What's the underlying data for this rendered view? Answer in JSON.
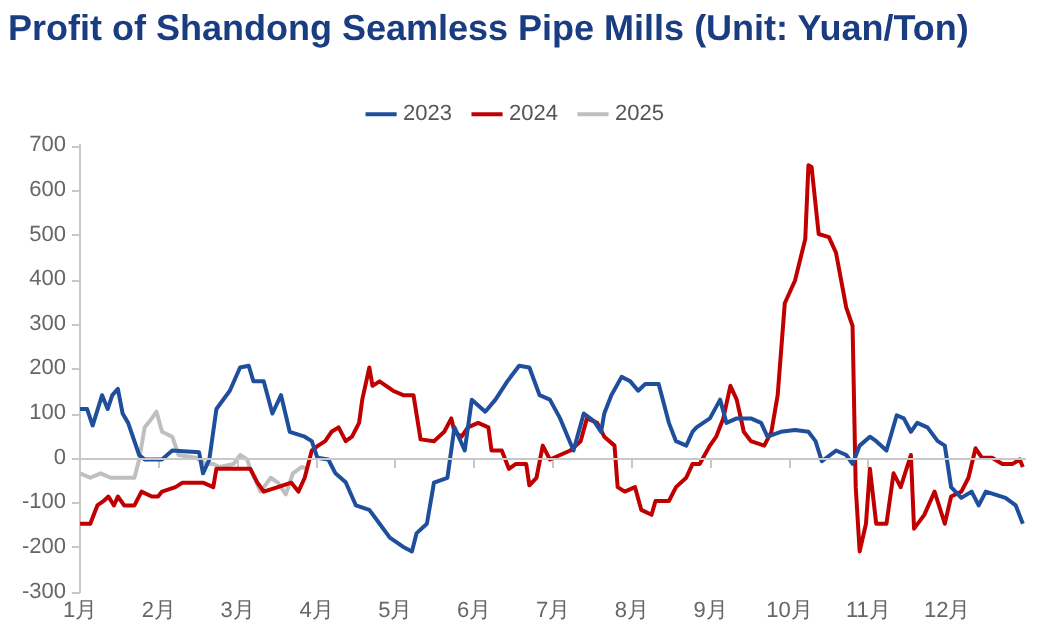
{
  "chart_data": {
    "type": "line",
    "title": "Profit of Shandong Seamless Pipe Mills (Unit: Yuan/Ton)",
    "legend": "top",
    "grid": false,
    "marker": "none",
    "line_style": "solid",
    "xlim": [
      1,
      13
    ],
    "xticks": [
      {
        "value": 1,
        "label": "1月"
      },
      {
        "value": 2,
        "label": "2月"
      },
      {
        "value": 3,
        "label": "3月"
      },
      {
        "value": 4,
        "label": "4月"
      },
      {
        "value": 5,
        "label": "5月"
      },
      {
        "value": 6,
        "label": "6月"
      },
      {
        "value": 7,
        "label": "7月"
      },
      {
        "value": 8,
        "label": "8月"
      },
      {
        "value": 9,
        "label": "9月"
      },
      {
        "value": 10,
        "label": "10月"
      },
      {
        "value": 11,
        "label": "11月"
      },
      {
        "value": 12,
        "label": "12月"
      }
    ],
    "ref_lines": [
      {
        "axis": "y",
        "value": 0,
        "color": "#c8c8c8"
      }
    ],
    "ylim": [
      -300,
      700
    ],
    "yticks": [
      -300,
      -200,
      -100,
      0,
      100,
      200,
      300,
      400,
      500,
      600,
      700
    ],
    "series": [
      {
        "name": "2023",
        "color": "#1f4e9c",
        "x": [
          1.0,
          1.09,
          1.16,
          1.28,
          1.35,
          1.41,
          1.48,
          1.54,
          1.61,
          1.75,
          1.82,
          2.04,
          2.17,
          2.51,
          2.56,
          2.64,
          2.73,
          2.9,
          3.03,
          3.14,
          3.2,
          3.33,
          3.44,
          3.55,
          3.66,
          3.85,
          3.94,
          4.01,
          4.15,
          4.24,
          4.37,
          4.5,
          4.67,
          4.8,
          4.93,
          5.1,
          5.21,
          5.27,
          5.4,
          5.49,
          5.66,
          5.75,
          5.88,
          5.97,
          6.14,
          6.27,
          6.42,
          6.57,
          6.7,
          6.83,
          6.96,
          7.09,
          7.26,
          7.39,
          7.52,
          7.61,
          7.65,
          7.74,
          7.87,
          7.98,
          8.08,
          8.17,
          8.34,
          8.47,
          8.56,
          8.69,
          8.77,
          8.82,
          8.99,
          9.12,
          9.2,
          9.33,
          9.51,
          9.64,
          9.72,
          9.89,
          10.07,
          10.24,
          10.33,
          10.41,
          10.59,
          10.72,
          10.8,
          10.89,
          11.02,
          11.1,
          11.23,
          11.36,
          11.45,
          11.54,
          11.62,
          11.75,
          11.88,
          11.97,
          12.05,
          12.18,
          12.31,
          12.4,
          12.49,
          12.74,
          12.87,
          12.96
        ],
        "values": [
          109,
          109,
          72,
          140,
          109,
          140,
          154,
          99,
          78,
          6,
          -4,
          -4,
          16,
          12,
          -35,
          -4,
          109,
          150,
          202,
          206,
          171,
          171,
          99,
          140,
          58,
          47,
          37,
          0,
          -4,
          -35,
          -55,
          -107,
          -117,
          -148,
          -179,
          -200,
          -210,
          -169,
          -148,
          -56,
          -45,
          68,
          16,
          130,
          103,
          130,
          171,
          206,
          202,
          140,
          130,
          88,
          16,
          99,
          82,
          58,
          99,
          140,
          181,
          171,
          150,
          165,
          165,
          78,
          37,
          27,
          58,
          68,
          88,
          130,
          78,
          88,
          88,
          78,
          47,
          58,
          62,
          58,
          37,
          -8,
          16,
          6,
          -14,
          27,
          47,
          37,
          16,
          95,
          88,
          58,
          78,
          68,
          37,
          27,
          -66,
          -90,
          -76,
          -107,
          -76,
          -90,
          -107,
          -148
        ]
      },
      {
        "name": "2024",
        "color": "#c00000",
        "x": [
          1.0,
          1.13,
          1.22,
          1.3,
          1.36,
          1.43,
          1.48,
          1.56,
          1.69,
          1.78,
          1.91,
          1.99,
          2.04,
          2.21,
          2.3,
          2.56,
          2.69,
          2.73,
          3.16,
          3.25,
          3.33,
          3.51,
          3.68,
          3.77,
          3.85,
          3.94,
          4.02,
          4.11,
          4.19,
          4.28,
          4.37,
          4.45,
          4.54,
          4.58,
          4.67,
          4.71,
          4.8,
          4.97,
          5.1,
          5.23,
          5.32,
          5.49,
          5.62,
          5.71,
          5.75,
          5.84,
          5.92,
          6.05,
          6.18,
          6.22,
          6.35,
          6.44,
          6.53,
          6.66,
          6.7,
          6.79,
          6.87,
          6.96,
          7.09,
          7.22,
          7.35,
          7.43,
          7.56,
          7.65,
          7.78,
          7.82,
          7.91,
          8.04,
          8.12,
          8.25,
          8.3,
          8.47,
          8.56,
          8.69,
          8.77,
          8.86,
          8.99,
          9.07,
          9.16,
          9.25,
          9.33,
          9.42,
          9.51,
          9.68,
          9.77,
          9.85,
          9.94,
          10.07,
          10.2,
          10.24,
          10.28,
          10.37,
          10.5,
          10.59,
          10.72,
          10.8,
          10.84,
          10.89,
          10.97,
          11.02,
          11.1,
          11.23,
          11.32,
          11.41,
          11.54,
          11.58,
          11.71,
          11.84,
          11.97,
          12.05,
          12.18,
          12.27,
          12.36,
          12.44,
          12.57,
          12.7,
          12.83,
          12.92,
          12.96
        ],
        "values": [
          -148,
          -148,
          -107,
          -97,
          -87,
          -107,
          -87,
          -107,
          -107,
          -76,
          -87,
          -87,
          -76,
          -66,
          -56,
          -56,
          -66,
          -25,
          -25,
          -56,
          -76,
          -66,
          -56,
          -76,
          -45,
          16,
          27,
          37,
          58,
          68,
          37,
          47,
          78,
          130,
          202,
          161,
          171,
          150,
          140,
          140,
          41,
          37,
          58,
          88,
          58,
          47,
          68,
          78,
          68,
          16,
          16,
          -25,
          -14,
          -14,
          -62,
          -45,
          27,
          -4,
          6,
          16,
          37,
          88,
          78,
          47,
          27,
          -66,
          -76,
          -66,
          -117,
          -128,
          -97,
          -97,
          -66,
          -45,
          -14,
          -14,
          27,
          47,
          88,
          161,
          130,
          58,
          37,
          27,
          58,
          140,
          346,
          397,
          490,
          655,
          651,
          501,
          494,
          459,
          336,
          295,
          -66,
          -210,
          -148,
          -25,
          -148,
          -148,
          -35,
          -66,
          6,
          -159,
          -128,
          -76,
          -148,
          -87,
          -76,
          -45,
          21,
          0,
          0,
          -14,
          -14,
          -4,
          -21
        ]
      },
      {
        "name": "2025",
        "color": "#bfbfbf",
        "x": [
          1.0,
          1.13,
          1.26,
          1.39,
          1.69,
          1.75,
          1.82,
          1.91,
          1.97,
          2.04,
          2.17,
          2.25,
          2.47,
          2.6,
          2.69,
          2.77,
          2.95,
          3.03,
          3.12,
          3.16,
          3.29,
          3.42,
          3.51,
          3.61,
          3.7,
          3.81,
          3.9
        ],
        "values": [
          -35,
          -45,
          -35,
          -45,
          -45,
          -4,
          68,
          88,
          103,
          58,
          47,
          6,
          0,
          -14,
          -14,
          -21,
          -14,
          6,
          -4,
          -25,
          -76,
          -45,
          -56,
          -82,
          -35,
          -21,
          -25
        ]
      }
    ]
  }
}
